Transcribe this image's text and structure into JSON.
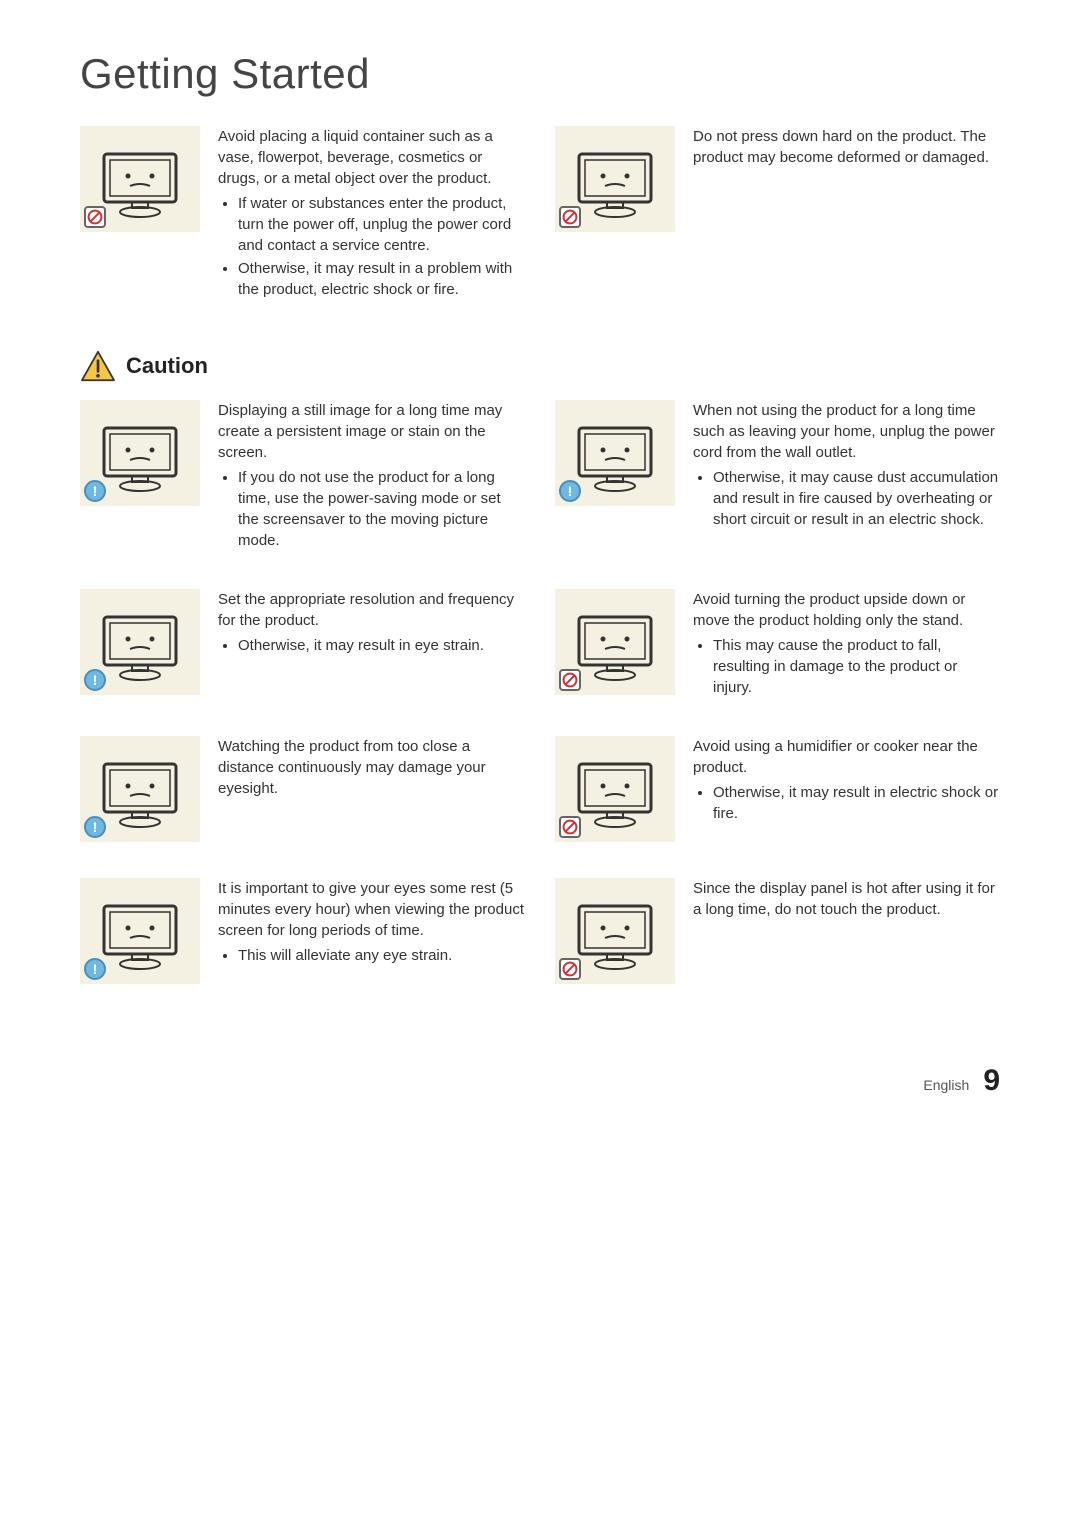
{
  "page": {
    "title": "Getting Started",
    "caution_label": "Caution",
    "footer_lang": "English",
    "footer_page": "9"
  },
  "colors": {
    "illustration_bg": "#f4f0e2",
    "prohibit_red": "#cc3333",
    "info_blue": "#6fb8e0",
    "caution_yellow": "#f6c642",
    "text": "#333333"
  },
  "section1": [
    {
      "icon_type": "prohibit",
      "main": "Avoid placing a liquid container such as a vase, flowerpot, beverage, cosmetics or drugs, or a metal object over the product.",
      "bullets": [
        "If water or substances enter the product, turn the power off, unplug the power cord and contact a service centre.",
        "Otherwise, it may result in a problem with the product, electric shock or fire."
      ]
    },
    {
      "icon_type": "prohibit",
      "main": "Do not press down hard on the product. The product may become deformed or damaged.",
      "bullets": []
    }
  ],
  "section2": [
    {
      "icon_type": "info",
      "main": "Displaying a still image for a long time may create a persistent image or stain on the screen.",
      "bullets": [
        "If you do not use the product for a long time, use the power-saving mode or set the screensaver to the moving picture mode."
      ]
    },
    {
      "icon_type": "info",
      "main": "When not using the product for a long time such as leaving your home, unplug the power cord from the wall outlet.",
      "bullets": [
        "Otherwise, it may cause dust accumulation and result in fire caused by overheating or short circuit or result in an electric shock."
      ]
    },
    {
      "icon_type": "info",
      "main": "Set the appropriate resolution and frequency for the product.",
      "bullets": [
        "Otherwise, it may result in eye strain."
      ]
    },
    {
      "icon_type": "prohibit",
      "main": "Avoid turning the product upside down or move the product holding only the stand.",
      "bullets": [
        "This may cause the product to fall, resulting in damage to the product or injury."
      ]
    },
    {
      "icon_type": "info",
      "main": "Watching the product from too close a distance continuously may damage your eyesight.",
      "bullets": []
    },
    {
      "icon_type": "prohibit",
      "main": "Avoid using a humidifier or cooker near the product.",
      "bullets": [
        "Otherwise, it may result in electric shock or fire."
      ]
    },
    {
      "icon_type": "info",
      "main": "It is important to give your eyes some rest (5 minutes every hour) when viewing the product screen for long periods of time.",
      "bullets": [
        "This will alleviate any eye strain."
      ]
    },
    {
      "icon_type": "prohibit",
      "main": "Since the display panel is hot after using it for a long time, do not touch the product.",
      "bullets": []
    }
  ]
}
